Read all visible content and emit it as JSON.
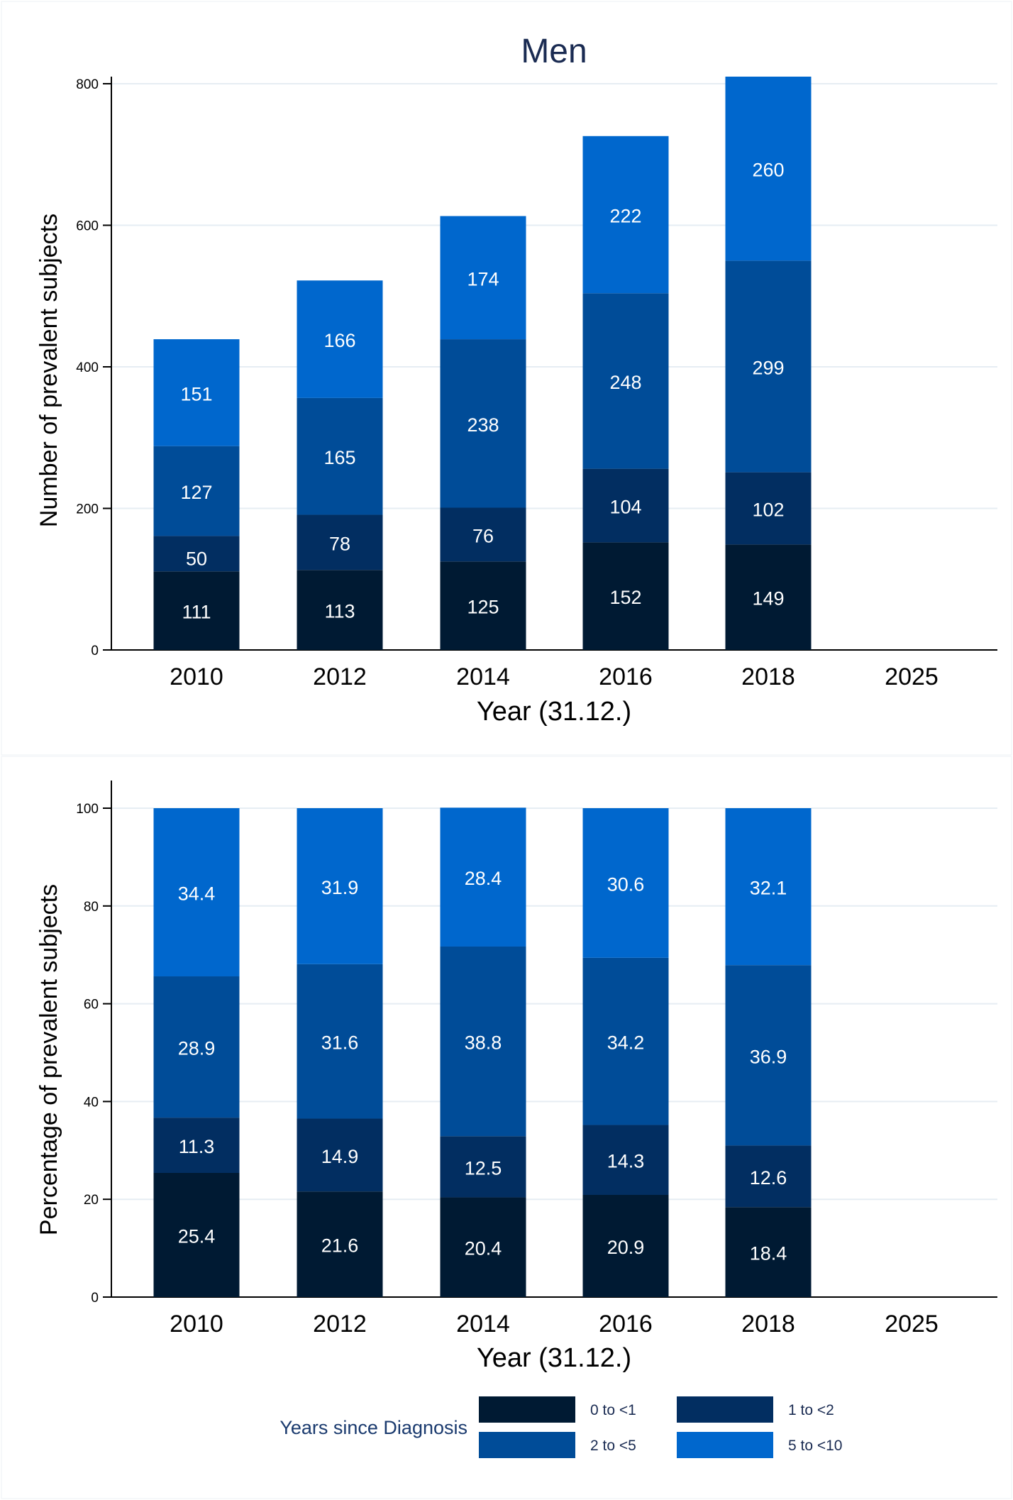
{
  "colors": {
    "0 to <1": "#001a33",
    "1 to <2": "#022e61",
    "2 to <5": "#004c98",
    "5 to <10": "#0067cd"
  },
  "chart_data": [
    {
      "type": "bar",
      "stacked": true,
      "title": "Men",
      "xlabel": "Year (31.12.)",
      "ylabel": "Number of prevalent subjects",
      "categories": [
        "2010",
        "2012",
        "2014",
        "2016",
        "2018",
        "2025"
      ],
      "ylim": [
        0,
        810
      ],
      "yticks": [
        0,
        200,
        400,
        600,
        800
      ],
      "grid": true,
      "series": [
        {
          "name": "0 to <1",
          "values": [
            111,
            113,
            125,
            152,
            149,
            null
          ]
        },
        {
          "name": "1 to <2",
          "values": [
            50,
            78,
            76,
            104,
            102,
            null
          ]
        },
        {
          "name": "2 to <5",
          "values": [
            127,
            165,
            238,
            248,
            299,
            null
          ]
        },
        {
          "name": "5 to <10",
          "values": [
            151,
            166,
            174,
            222,
            260,
            null
          ]
        }
      ]
    },
    {
      "type": "bar",
      "stacked": true,
      "title": "",
      "xlabel": "Year (31.12.)",
      "ylabel": "Percentage of prevalent subjects",
      "categories": [
        "2010",
        "2012",
        "2014",
        "2016",
        "2018",
        "2025"
      ],
      "ylim": [
        0,
        100
      ],
      "yticks": [
        0,
        20,
        40,
        60,
        80,
        100
      ],
      "grid": true,
      "series": [
        {
          "name": "0 to <1",
          "values": [
            25.4,
            21.6,
            20.4,
            20.9,
            18.4,
            null
          ]
        },
        {
          "name": "1 to <2",
          "values": [
            11.3,
            14.9,
            12.5,
            14.3,
            12.6,
            null
          ]
        },
        {
          "name": "2 to <5",
          "values": [
            28.9,
            31.6,
            38.8,
            34.2,
            36.9,
            null
          ]
        },
        {
          "name": "5 to <10",
          "values": [
            34.4,
            31.9,
            28.4,
            30.6,
            32.1,
            null
          ]
        }
      ]
    }
  ],
  "legend": {
    "title": "Years since Diagnosis",
    "position": "bottom",
    "items": [
      "0 to <1",
      "1 to <2",
      "2 to <5",
      "5 to <10"
    ]
  }
}
